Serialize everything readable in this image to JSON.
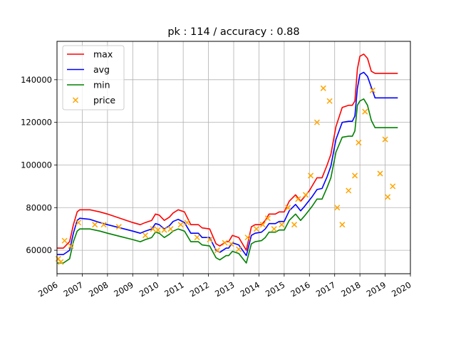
{
  "chart_data": {
    "type": "line",
    "title": "pk : 114 / accuracy : 0.88",
    "xlabel": "",
    "ylabel": "",
    "xlim": [
      2006.0,
      2020.0
    ],
    "ylim": [
      49000,
      158000
    ],
    "x_ticks": [
      2006,
      2007,
      2008,
      2009,
      2010,
      2011,
      2012,
      2013,
      2014,
      2015,
      2016,
      2017,
      2018,
      2019,
      2020
    ],
    "x_tick_labels": [
      "2006",
      "2007",
      "2008",
      "2009",
      "2010",
      "2011",
      "2012",
      "2013",
      "2014",
      "2015",
      "2016",
      "2017",
      "2018",
      "2019",
      "2020"
    ],
    "y_ticks": [
      60000,
      80000,
      100000,
      120000,
      140000
    ],
    "y_tick_labels": [
      "60000",
      "80000",
      "100000",
      "120000",
      "140000"
    ],
    "grid": true,
    "legend": "top-left",
    "colors": {
      "max": "#ff0000",
      "avg": "#0000ff",
      "min": "#008000",
      "price": "#ffa500"
    },
    "series": [
      {
        "name": "max",
        "kind": "line",
        "color": "#ff0000",
        "x": [
          2006.0,
          2006.25,
          2006.5,
          2006.65,
          2006.8,
          2006.9,
          2007.3,
          2007.7,
          2008.0,
          2008.5,
          2009.0,
          2009.3,
          2009.5,
          2009.75,
          2009.9,
          2010.05,
          2010.25,
          2010.45,
          2010.6,
          2010.8,
          2011.05,
          2011.3,
          2011.45,
          2011.6,
          2011.75,
          2012.05,
          2012.3,
          2012.45,
          2012.7,
          2012.8,
          2012.95,
          2013.2,
          2013.5,
          2013.7,
          2013.85,
          2014.1,
          2014.25,
          2014.4,
          2014.65,
          2014.8,
          2015.0,
          2015.2,
          2015.45,
          2015.65,
          2015.8,
          2016.0,
          2016.1,
          2016.3,
          2016.5,
          2016.7,
          2016.85,
          2017.05,
          2017.3,
          2017.55,
          2017.7,
          2017.8,
          2017.9,
          2018.0,
          2018.15,
          2018.3,
          2018.45,
          2018.6,
          2018.75,
          2018.85,
          2019.0,
          2019.15,
          2019.25,
          2019.4,
          2019.5
        ],
        "y": [
          61000,
          61000,
          64000,
          72000,
          78000,
          79000,
          79000,
          78000,
          77000,
          75000,
          73000,
          72000,
          73000,
          74000,
          77000,
          76500,
          74000,
          75500,
          77500,
          79000,
          78000,
          72000,
          72000,
          72000,
          70500,
          70000,
          63000,
          62000,
          64000,
          64000,
          67000,
          66000,
          60000,
          71000,
          72000,
          72000,
          74000,
          77000,
          77000,
          78000,
          78000,
          83000,
          86000,
          83000,
          85000,
          88000,
          90000,
          94000,
          94000,
          100000,
          105000,
          118000,
          127000,
          128000,
          128000,
          130000,
          145000,
          151000,
          152000,
          150000,
          144000,
          143000,
          143000,
          143000,
          143000,
          143000,
          143000,
          143000,
          143000
        ]
      },
      {
        "name": "avg",
        "kind": "line",
        "color": "#0000ff",
        "x": [
          2006.0,
          2006.25,
          2006.5,
          2006.65,
          2006.8,
          2006.9,
          2007.3,
          2007.7,
          2008.0,
          2008.5,
          2009.0,
          2009.3,
          2009.5,
          2009.75,
          2009.9,
          2010.05,
          2010.25,
          2010.45,
          2010.6,
          2010.8,
          2011.05,
          2011.3,
          2011.45,
          2011.6,
          2011.75,
          2012.05,
          2012.3,
          2012.45,
          2012.7,
          2012.8,
          2012.95,
          2013.2,
          2013.5,
          2013.7,
          2013.85,
          2014.1,
          2014.25,
          2014.4,
          2014.65,
          2014.8,
          2015.0,
          2015.2,
          2015.45,
          2015.65,
          2015.8,
          2016.0,
          2016.1,
          2016.3,
          2016.5,
          2016.7,
          2016.85,
          2017.05,
          2017.3,
          2017.55,
          2017.7,
          2017.8,
          2017.9,
          2018.0,
          2018.15,
          2018.3,
          2018.45,
          2018.6,
          2018.75,
          2018.85,
          2019.0,
          2019.15,
          2019.25,
          2019.4,
          2019.5
        ],
        "y": [
          58000,
          58000,
          60000,
          68000,
          74000,
          75000,
          74500,
          73000,
          72000,
          70500,
          69000,
          68000,
          69000,
          70000,
          72500,
          72000,
          70000,
          71500,
          73500,
          74500,
          73000,
          68000,
          68000,
          68000,
          66000,
          66000,
          60000,
          59000,
          61000,
          61000,
          63500,
          62500,
          57500,
          67000,
          68000,
          68500,
          70000,
          72500,
          72500,
          73500,
          73500,
          78500,
          81500,
          78500,
          80500,
          83500,
          85000,
          88500,
          89000,
          94500,
          99500,
          112000,
          120000,
          120500,
          120500,
          123000,
          136000,
          142500,
          143500,
          141500,
          136500,
          131500,
          131500,
          131500,
          131500,
          131500,
          131500,
          131500,
          131500
        ]
      },
      {
        "name": "min",
        "kind": "line",
        "color": "#008000",
        "x": [
          2006.0,
          2006.25,
          2006.5,
          2006.65,
          2006.8,
          2006.9,
          2007.3,
          2007.7,
          2008.0,
          2008.5,
          2009.0,
          2009.3,
          2009.5,
          2009.75,
          2009.9,
          2010.05,
          2010.25,
          2010.45,
          2010.6,
          2010.8,
          2011.05,
          2011.3,
          2011.45,
          2011.6,
          2011.75,
          2012.05,
          2012.3,
          2012.45,
          2012.7,
          2012.8,
          2012.95,
          2013.2,
          2013.5,
          2013.7,
          2013.85,
          2014.1,
          2014.25,
          2014.4,
          2014.65,
          2014.8,
          2015.0,
          2015.2,
          2015.45,
          2015.65,
          2015.8,
          2016.0,
          2016.1,
          2016.3,
          2016.5,
          2016.7,
          2016.85,
          2017.05,
          2017.3,
          2017.55,
          2017.7,
          2017.8,
          2017.9,
          2018.0,
          2018.15,
          2018.3,
          2018.45,
          2018.6,
          2018.75,
          2018.85,
          2019.0,
          2019.15,
          2019.25,
          2019.4,
          2019.5
        ],
        "y": [
          54000,
          54000,
          56000,
          64000,
          69000,
          70000,
          70000,
          69000,
          68000,
          66500,
          65000,
          64000,
          65000,
          66000,
          68500,
          68000,
          66000,
          67500,
          69000,
          70000,
          69000,
          64000,
          64000,
          64000,
          62500,
          62000,
          56500,
          55500,
          57500,
          57500,
          59500,
          58500,
          54000,
          63000,
          64000,
          64500,
          66000,
          68500,
          68500,
          69500,
          69500,
          74000,
          77000,
          74000,
          76000,
          79000,
          80500,
          84000,
          84000,
          89500,
          94000,
          106000,
          113000,
          113500,
          113500,
          116000,
          128000,
          130000,
          131000,
          128000,
          121000,
          117500,
          117500,
          117500,
          117500,
          117500,
          117500,
          117500,
          117500
        ]
      },
      {
        "name": "price",
        "kind": "scatter",
        "color": "#ffa500",
        "x": [
          2006.05,
          2006.15,
          2006.3,
          2006.55,
          2006.85,
          2007.5,
          2007.85,
          2008.45,
          2009.5,
          2009.8,
          2010.0,
          2010.25,
          2010.5,
          2010.9,
          2011.15,
          2011.55,
          2012.05,
          2012.35,
          2012.65,
          2012.9,
          2013.2,
          2013.55,
          2013.9,
          2014.15,
          2014.35,
          2014.6,
          2014.9,
          2015.15,
          2015.4,
          2015.55,
          2015.85,
          2016.05,
          2016.3,
          2016.55,
          2016.8,
          2017.1,
          2017.3,
          2017.55,
          2017.8,
          2017.95,
          2018.2,
          2018.5,
          2018.8,
          2019.0,
          2019.1,
          2019.3
        ],
        "y": [
          56000,
          54500,
          64500,
          62000,
          73000,
          72000,
          72000,
          71000,
          67000,
          70000,
          69500,
          69500,
          70000,
          72000,
          73000,
          66000,
          65000,
          60000,
          63500,
          63000,
          60500,
          66000,
          70000,
          72000,
          75000,
          70000,
          72000,
          80000,
          72000,
          84000,
          86000,
          95000,
          120000,
          136000,
          130000,
          80000,
          72000,
          88000,
          95000,
          110500,
          125000,
          135000,
          96000,
          112000,
          85000,
          90000
        ]
      }
    ]
  }
}
